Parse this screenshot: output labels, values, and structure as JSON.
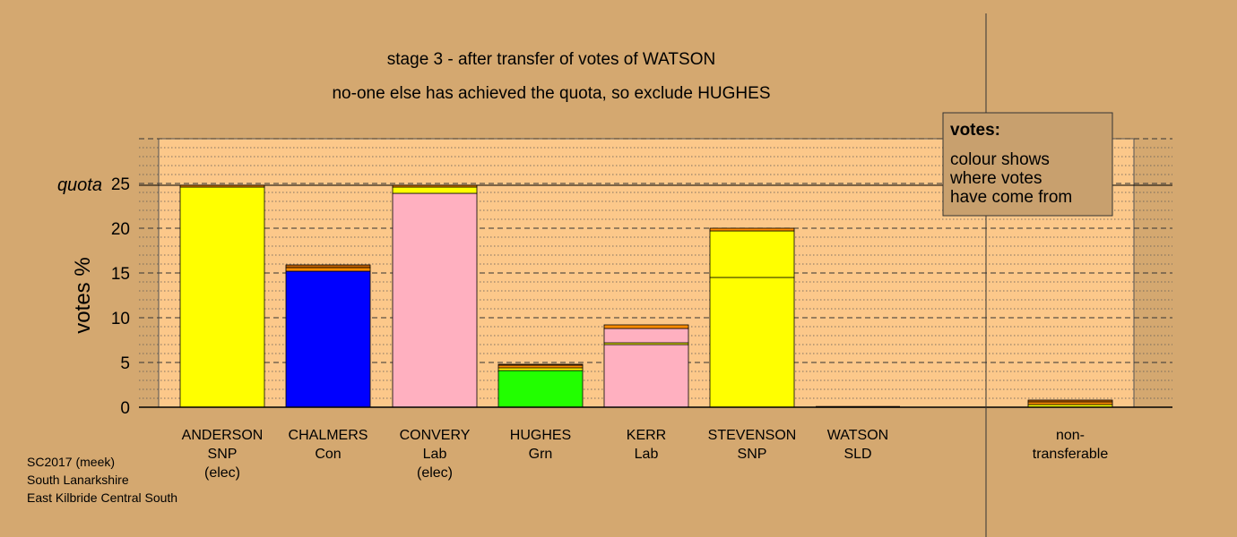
{
  "chart_data": {
    "type": "bar",
    "title": "stage 3 - after transfer of votes of WATSON",
    "subtitle": "no-one else has achieved the quota, so exclude HUGHES",
    "ylabel": "votes %",
    "ylim": [
      0,
      30
    ],
    "yticks": [
      "0",
      "5",
      "10",
      "15",
      "20",
      "25"
    ],
    "quota": {
      "label": "quota",
      "value": 24.8
    },
    "grid": true,
    "legend_position": "top-right",
    "legend": {
      "title": "votes:",
      "lines": [
        "colour shows",
        "where votes",
        "have come from"
      ]
    },
    "footer": [
      "SC2017 (meek)",
      "South Lanarkshire",
      "East Kilbride Central South"
    ],
    "colors": {
      "background": "#d4a870",
      "plot_area": "#fcc88a",
      "SNP": "#ffff00",
      "Con": "#0000ff",
      "Lab": "#ffb0c0",
      "Grn": "#22ff00",
      "SLD": "#ff8c00",
      "transfer_other": "#c06000"
    },
    "categories": [
      {
        "lines": [
          "ANDERSON",
          "SNP",
          "(elec)"
        ]
      },
      {
        "lines": [
          "CHALMERS",
          "Con"
        ]
      },
      {
        "lines": [
          "CONVERY",
          "Lab",
          "(elec)"
        ]
      },
      {
        "lines": [
          "HUGHES",
          "Grn"
        ]
      },
      {
        "lines": [
          "KERR",
          "Lab"
        ]
      },
      {
        "lines": [
          "STEVENSON",
          "SNP"
        ]
      },
      {
        "lines": [
          "WATSON",
          "SLD"
        ]
      },
      {
        "lines": [
          "non-",
          "transferable"
        ]
      }
    ],
    "bars": [
      {
        "segments": [
          {
            "party": "SNP",
            "value": 24.6
          },
          {
            "party": "SLD",
            "value": 0.2
          }
        ]
      },
      {
        "segments": [
          {
            "party": "Con",
            "value": 15.2
          },
          {
            "party": "SLD",
            "value": 0.4
          },
          {
            "party": "transfer_other",
            "value": 0.3
          }
        ]
      },
      {
        "segments": [
          {
            "party": "Lab",
            "value": 23.9
          },
          {
            "party": "SNP",
            "value": 0.7
          },
          {
            "party": "SLD",
            "value": 0.2
          }
        ]
      },
      {
        "segments": [
          {
            "party": "Grn",
            "value": 4.1
          },
          {
            "party": "SNP",
            "value": 0.3
          },
          {
            "party": "SLD",
            "value": 0.3
          },
          {
            "party": "transfer_other",
            "value": 0.1
          }
        ]
      },
      {
        "segments": [
          {
            "party": "Lab",
            "value": 7.0
          },
          {
            "party": "SNP",
            "value": 0.2
          },
          {
            "party": "Lab",
            "value": 1.6
          },
          {
            "party": "SLD",
            "value": 0.4
          }
        ]
      },
      {
        "segments": [
          {
            "party": "SNP",
            "value": 14.5
          },
          {
            "party": "SNP",
            "value": 5.2
          },
          {
            "party": "SLD",
            "value": 0.3
          }
        ]
      },
      {
        "segments": []
      },
      {
        "segments": [
          {
            "party": "SNP",
            "value": 0.3
          },
          {
            "party": "SLD",
            "value": 0.3
          },
          {
            "party": "transfer_other",
            "value": 0.2
          }
        ]
      }
    ]
  }
}
